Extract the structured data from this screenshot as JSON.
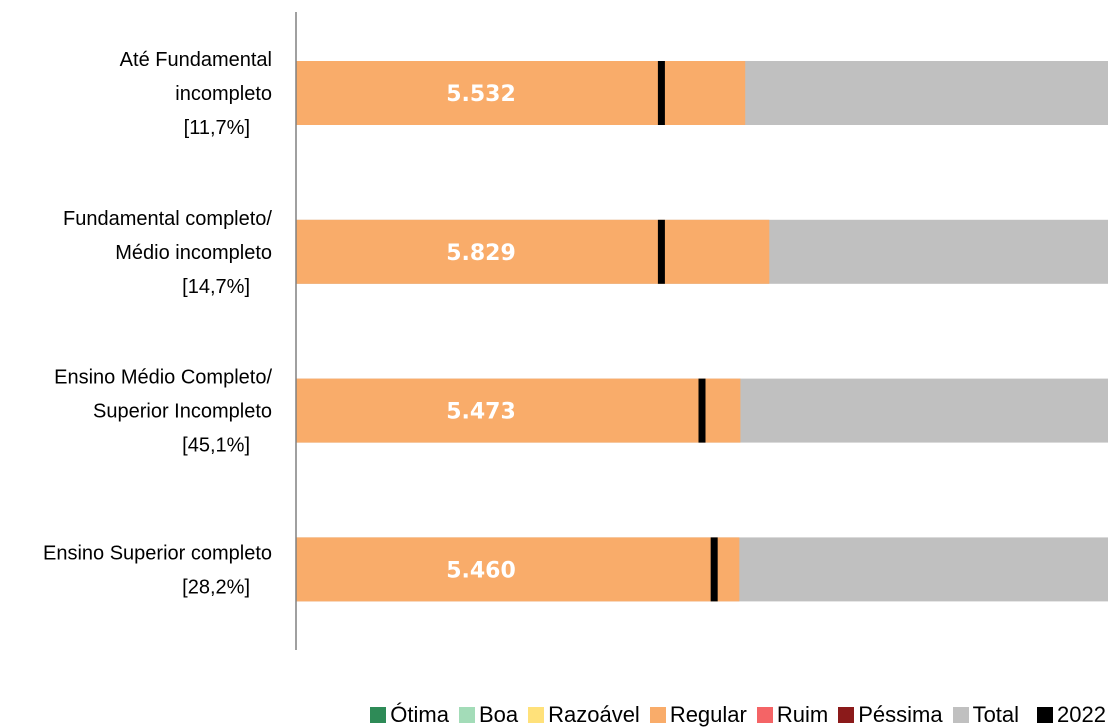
{
  "chart_data": {
    "type": "bar",
    "orientation": "horizontal",
    "stacked": true,
    "categories": [
      [
        "Até Fundamental",
        "incompleto",
        "[11,7%]"
      ],
      [
        "Fundamental completo/",
        "Médio incompleto",
        "[14,7%]"
      ],
      [
        "Ensino Médio Completo/",
        "Superior Incompleto",
        "[45,1%]"
      ],
      [
        "Ensino Superior completo",
        "[28,2%]"
      ]
    ],
    "value_labels": [
      "5.532",
      "5.829",
      "5.473",
      "5.460"
    ],
    "values": [
      5532,
      5829,
      5473,
      5460
    ],
    "total": [
      10000,
      10000,
      10000,
      10000
    ],
    "marker_2022": [
      4500,
      4500,
      5000,
      5150
    ],
    "xlim": [
      0,
      10000
    ],
    "grid": false,
    "legend_position": "bottom-right",
    "legend": [
      {
        "name": "Ótima",
        "color": "#2e8b57"
      },
      {
        "name": "Boa",
        "color": "#a3dcb8"
      },
      {
        "name": "Razoável",
        "color": "#ffe17a"
      },
      {
        "name": "Regular",
        "color": "#f9ac6a"
      },
      {
        "name": "Ruim",
        "color": "#f46466"
      },
      {
        "name": "Péssima",
        "color": "#8b1a1a"
      },
      {
        "name": "Total",
        "color": "#c0c0c0"
      },
      {
        "name": "2022",
        "color": "#000000"
      }
    ],
    "colors": {
      "regular": "#f9ac6a",
      "total": "#c0c0c0",
      "marker": "#000000",
      "axis": "#808080",
      "value_text": "#ffffff"
    }
  }
}
